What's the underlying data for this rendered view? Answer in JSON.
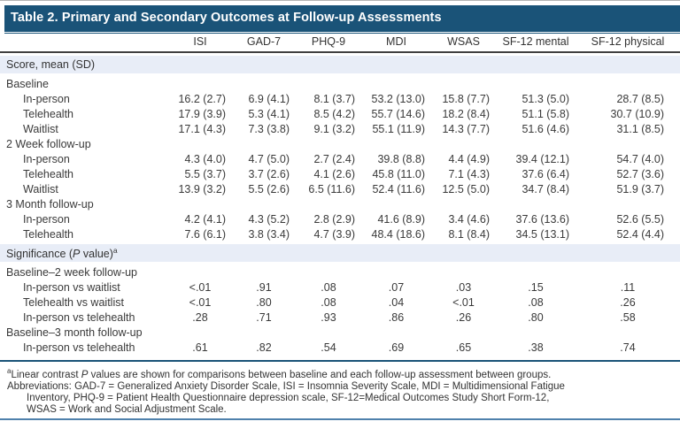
{
  "title": "Table 2. Primary and Secondary Outcomes at Follow-up Assessments",
  "colors": {
    "title_bar_navy": "#1A5378",
    "section_band_blue": "#E8EDF7",
    "header_rule_dark": "#3F3F3F",
    "footnote_rule_navy": "#1A5378",
    "bottom_rule_blue": "#4F81AC"
  },
  "table": {
    "columns": [
      "",
      "ISI",
      "GAD-7",
      "PHQ-9",
      "MDI",
      "WSAS",
      "SF-12 mental",
      "SF-12 physical"
    ],
    "rows": [
      {
        "type": "band",
        "parts": [
          {
            "t": "Score, mean (SD)"
          }
        ]
      },
      {
        "type": "group",
        "label": "Baseline"
      },
      {
        "type": "num",
        "label": "In-person",
        "values": [
          "16.2 (2.7)",
          "6.9 (4.1)",
          "8.1 (3.7)",
          "53.2 (13.0)",
          "15.8 (7.7)",
          "51.3 (5.0)",
          "28.7 (8.5)"
        ]
      },
      {
        "type": "num",
        "label": "Telehealth",
        "values": [
          "17.9 (3.9)",
          "5.3 (4.1)",
          "8.5 (4.2)",
          "55.7 (14.6)",
          "18.2 (8.4)",
          "51.1 (5.8)",
          "30.7 (10.9)"
        ]
      },
      {
        "type": "num",
        "label": "Waitlist",
        "values": [
          "17.1 (4.3)",
          "7.3 (3.8)",
          "9.1 (3.2)",
          "55.1 (11.9)",
          "14.3 (7.7)",
          "51.6 (4.6)",
          "31.1 (8.5)"
        ]
      },
      {
        "type": "group",
        "label": "2 Week follow-up"
      },
      {
        "type": "num",
        "label": "In-person",
        "values": [
          "4.3 (4.0)",
          "4.7 (5.0)",
          "2.7 (2.4)",
          "39.8 (8.8)",
          "4.4 (4.9)",
          "39.4 (12.1)",
          "54.7 (4.0)"
        ]
      },
      {
        "type": "num",
        "label": "Telehealth",
        "values": [
          "5.5 (3.7)",
          "3.7 (2.6)",
          "4.1 (2.6)",
          "45.8 (11.0)",
          "7.1 (4.3)",
          "37.6 (6.4)",
          "52.7 (3.6)"
        ]
      },
      {
        "type": "num",
        "label": "Waitlist",
        "values": [
          "13.9 (3.2)",
          "5.5 (2.6)",
          "6.5 (11.6)",
          "52.4 (11.6)",
          "12.5 (5.0)",
          "34.7 (8.4)",
          "51.9 (3.7)"
        ]
      },
      {
        "type": "group",
        "label": "3 Month follow-up"
      },
      {
        "type": "num",
        "label": "In-person",
        "values": [
          "4.2 (4.1)",
          "4.3 (5.2)",
          "2.8 (2.9)",
          "41.6 (8.9)",
          "3.4 (4.6)",
          "37.6 (13.6)",
          "52.6 (5.5)"
        ]
      },
      {
        "type": "num",
        "label": "Telehealth",
        "values": [
          "7.6 (6.1)",
          "3.8 (3.4)",
          "4.7 (3.9)",
          "48.4 (18.6)",
          "8.1 (8.4)",
          "34.5 (13.1)",
          "52.4 (4.4)"
        ]
      },
      {
        "type": "band",
        "parts": [
          {
            "t": "Significance ("
          },
          {
            "t": "P",
            "i": true
          },
          {
            "t": " value)"
          },
          {
            "t": "a",
            "sup": true
          }
        ]
      },
      {
        "type": "group",
        "label": "Baseline–2 week follow-up"
      },
      {
        "type": "pv",
        "label": "In-person vs waitlist",
        "values": [
          "<.01",
          ".91",
          ".08",
          ".07",
          ".03",
          ".15",
          ".11"
        ]
      },
      {
        "type": "pv",
        "label": "Telehealth vs waitlist",
        "values": [
          "<.01",
          ".80",
          ".08",
          ".04",
          "<.01",
          ".08",
          ".26"
        ]
      },
      {
        "type": "pv",
        "label": "In-person vs telehealth",
        "values": [
          ".28",
          ".71",
          ".93",
          ".86",
          ".26",
          ".80",
          ".58"
        ]
      },
      {
        "type": "group",
        "label": "Baseline–3 month follow-up"
      },
      {
        "type": "pv",
        "label": "In-person vs telehealth",
        "values": [
          ".61",
          ".82",
          ".54",
          ".69",
          ".65",
          ".38",
          ".74"
        ]
      }
    ]
  },
  "footnotes": {
    "fn1_sup": "a",
    "fn1_pre": "Linear contrast ",
    "fn1_italic": "P",
    "fn1_post": " values are shown for comparisons between baseline and each follow-up assessment between groups.",
    "abbrev_lines": [
      "Abbreviations: GAD-7 = Generalized Anxiety Disorder Scale, ISI = Insomnia Severity Scale, MDI = Multidimensional Fatigue",
      "Inventory, PHQ-9 = Patient Health Questionnaire depression scale, SF-12=Medical Outcomes Study Short Form-12,",
      "WSAS = Work and Social Adjustment Scale."
    ]
  }
}
